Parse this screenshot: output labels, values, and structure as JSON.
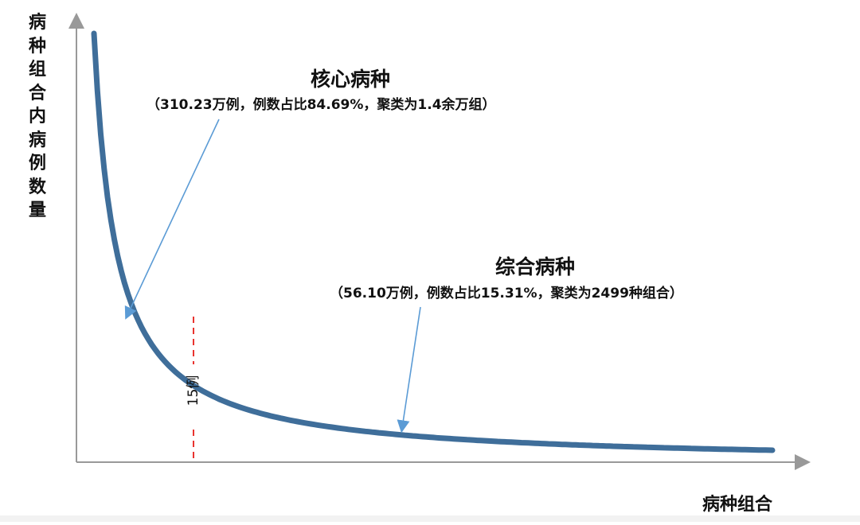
{
  "chart_data": {
    "type": "line",
    "title": "",
    "xlabel": "病种组合",
    "ylabel": "病种组合内病例数量",
    "grid": false,
    "legend": "none",
    "series": [
      {
        "values_shape": "decreasing-long-tail",
        "color": "#3f6e9a"
      }
    ],
    "threshold_marker": {
      "label": "15例",
      "color": "#e8332f"
    },
    "annotations": [
      {
        "title": "核心病种",
        "detail": "（310.23万例，例数占比84.69%，聚类为1.4余万组）",
        "cases_wan": 310.23,
        "share_pct": 84.69,
        "groups_label": "1.4余万组"
      },
      {
        "title": "综合病种",
        "detail": "（56.10万例，例数占比15.31%，聚类为2499种组合）",
        "cases_wan": 56.1,
        "share_pct": 15.31,
        "groups": 2499
      }
    ]
  },
  "colors": {
    "curve": "#3f6e9a",
    "axis": "#999999",
    "arrow": "#5b9bd5",
    "marker": "#e8332f"
  }
}
